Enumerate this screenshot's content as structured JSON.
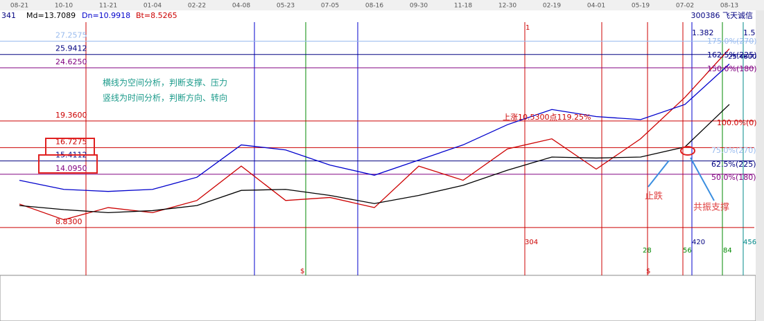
{
  "chart_data": {
    "type": "line",
    "header": {
      "left": "341",
      "md": "Md=13.7089",
      "dn": "Dn=10.9918",
      "bt": "Bt=8.5265",
      "right": "300386 飞天诚信"
    },
    "categories": [
      "08-21",
      "10-10",
      "11-21",
      "01-04",
      "02-22",
      "04-08",
      "05-23",
      "07-05",
      "08-16",
      "09-30",
      "11-18",
      "12-30",
      "02-19",
      "04-01",
      "05-19",
      "07-02",
      "08-13"
    ],
    "series": [
      {
        "color": "#cc0000",
        "values": [
          11.15,
          9.6,
          10.8,
          10.3,
          11.5,
          14.9,
          11.5,
          11.8,
          10.8,
          14.9,
          13.5,
          16.6,
          17.6,
          14.6,
          17.6,
          21.7,
          26.5
        ]
      },
      {
        "color": "#000000",
        "values": [
          11.0,
          10.6,
          10.3,
          10.5,
          11.0,
          12.5,
          12.6,
          12.0,
          11.2,
          12.0,
          13.0,
          14.5,
          15.8,
          15.7,
          15.8,
          16.8,
          21.0
        ]
      },
      {
        "color": "#0000cc",
        "values": [
          13.5,
          12.6,
          12.4,
          12.6,
          13.8,
          17.0,
          16.5,
          15.0,
          14.0,
          15.5,
          17.0,
          19.0,
          20.5,
          19.8,
          19.5,
          21.0,
          25.0
        ]
      }
    ],
    "ylim": [
      4.1,
      30.3
    ],
    "yticks": [
      27.2575,
      25.9412,
      {
        "value": 24.625,
        "label": "24.6250"
      },
      {
        "value": 19.36,
        "label": "19.3600"
      },
      16.7275,
      15.4112,
      {
        "value": 14.095,
        "label": "14.0950"
      },
      {
        "value": 8.83,
        "label": "8.8300"
      }
    ],
    "level_colors": [
      "#99bbee",
      "#000080",
      "#800080",
      "#cc0000",
      "#cc0000",
      "#000080",
      "#800080",
      "#cc0000"
    ],
    "annotations": [
      "横线为空间分析，判断支撑、压力",
      "竖线为时间分析，判断方向、转向",
      "上涨10.5300点119.25%",
      "止跌",
      "共振支撑",
      "175.0%(270)",
      "162.5%(225)",
      "150.0%(180)",
      "100.0%(0)",
      "75.0%(270)",
      "62.5%(225)",
      "50.0%(180)",
      "1.382",
      "1.5",
      "25.4600",
      "1",
      "304",
      "28",
      "56",
      "420",
      "84",
      "456",
      "$",
      "$"
    ]
  }
}
